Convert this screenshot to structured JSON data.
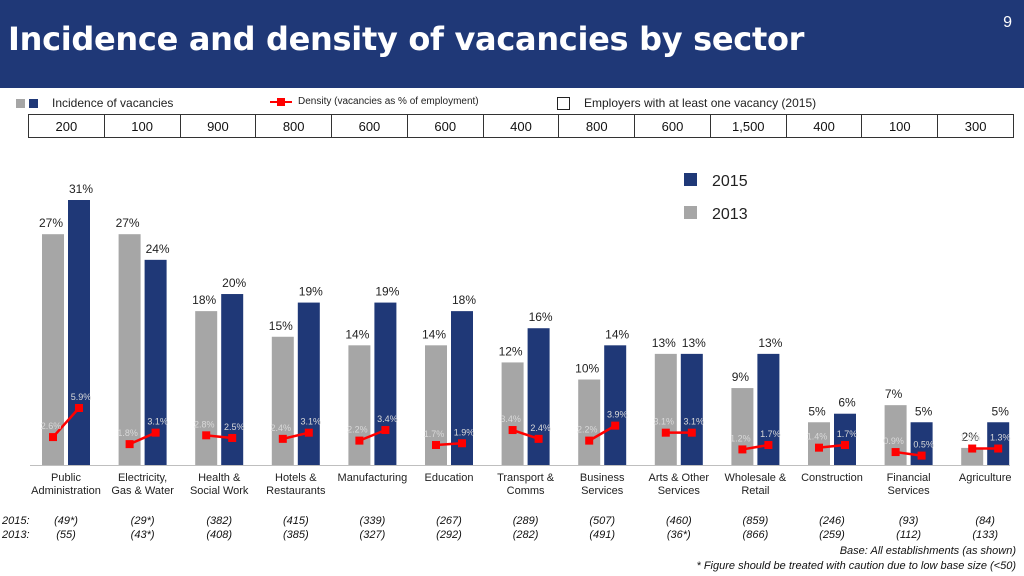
{
  "slide_number": "9",
  "title": "Incidence and density of vacancies by sector",
  "legend": {
    "incidence": "Incidence of  vacancies",
    "density": "Density (vacancies as % of employment)",
    "employers": "Employers with at least one vacancy (2015)",
    "year_2015": "2015",
    "year_2013": "2013"
  },
  "employers_with_vacancy_2015": [
    "200",
    "100",
    "900",
    "800",
    "600",
    "600",
    "400",
    "800",
    "600",
    "1,500",
    "400",
    "100",
    "300"
  ],
  "colors": {
    "bar_2015": "#1f3877",
    "bar_2013": "#a6a6a6",
    "density": "#ff0000",
    "header": "#1f3877"
  },
  "chart_data": {
    "type": "bar",
    "title": "Incidence and density of vacancies by sector",
    "categories": [
      [
        "Public",
        "Administration"
      ],
      [
        "Electricity,",
        "Gas & Water"
      ],
      [
        "Health &",
        "Social Work"
      ],
      [
        "Hotels &",
        "Restaurants"
      ],
      [
        "Manufacturing"
      ],
      [
        "Education"
      ],
      [
        "Transport &",
        "Comms"
      ],
      [
        "Business",
        "Services"
      ],
      [
        "Arts & Other",
        "Services"
      ],
      [
        "Wholesale &",
        "Retail"
      ],
      [
        "Construction"
      ],
      [
        "Financial",
        "Services"
      ],
      [
        "Agriculture"
      ]
    ],
    "series": [
      {
        "name": "2013",
        "values": [
          27,
          27,
          18,
          15,
          14,
          14,
          12,
          10,
          13,
          9,
          5,
          7,
          2
        ]
      },
      {
        "name": "2015",
        "values": [
          31,
          24,
          20,
          19,
          19,
          18,
          16,
          14,
          13,
          13,
          6,
          5,
          5
        ]
      }
    ],
    "density": {
      "2013": [
        2.6,
        1.8,
        2.8,
        2.4,
        2.2,
        1.7,
        3.4,
        2.2,
        3.1,
        1.2,
        1.4,
        0.9,
        1.3
      ],
      "2015": [
        5.9,
        3.1,
        2.5,
        3.1,
        3.4,
        1.9,
        2.4,
        3.9,
        3.1,
        1.7,
        1.7,
        0.5,
        1.3
      ]
    },
    "bases": {
      "label_2015": "2015:",
      "label_2013": "2013:",
      "2015": [
        "(49*)",
        "(29*)",
        "(382)",
        "(415)",
        "(339)",
        "(267)",
        "(289)",
        "(507)",
        "(460)",
        "(859)",
        "(246)",
        "(93)",
        "(84)"
      ],
      "2013": [
        "(55)",
        "(43*)",
        "(408)",
        "(385)",
        "(327)",
        "(292)",
        "(282)",
        "(491)",
        "(36*)",
        "(866)",
        "(259)",
        "(112)",
        "(133)"
      ]
    },
    "ylim": [
      0,
      32
    ]
  },
  "footnotes": {
    "base": "Base: All establishments (as shown)",
    "caution": "* Figure should be treated with caution due to low base size (<50)"
  }
}
